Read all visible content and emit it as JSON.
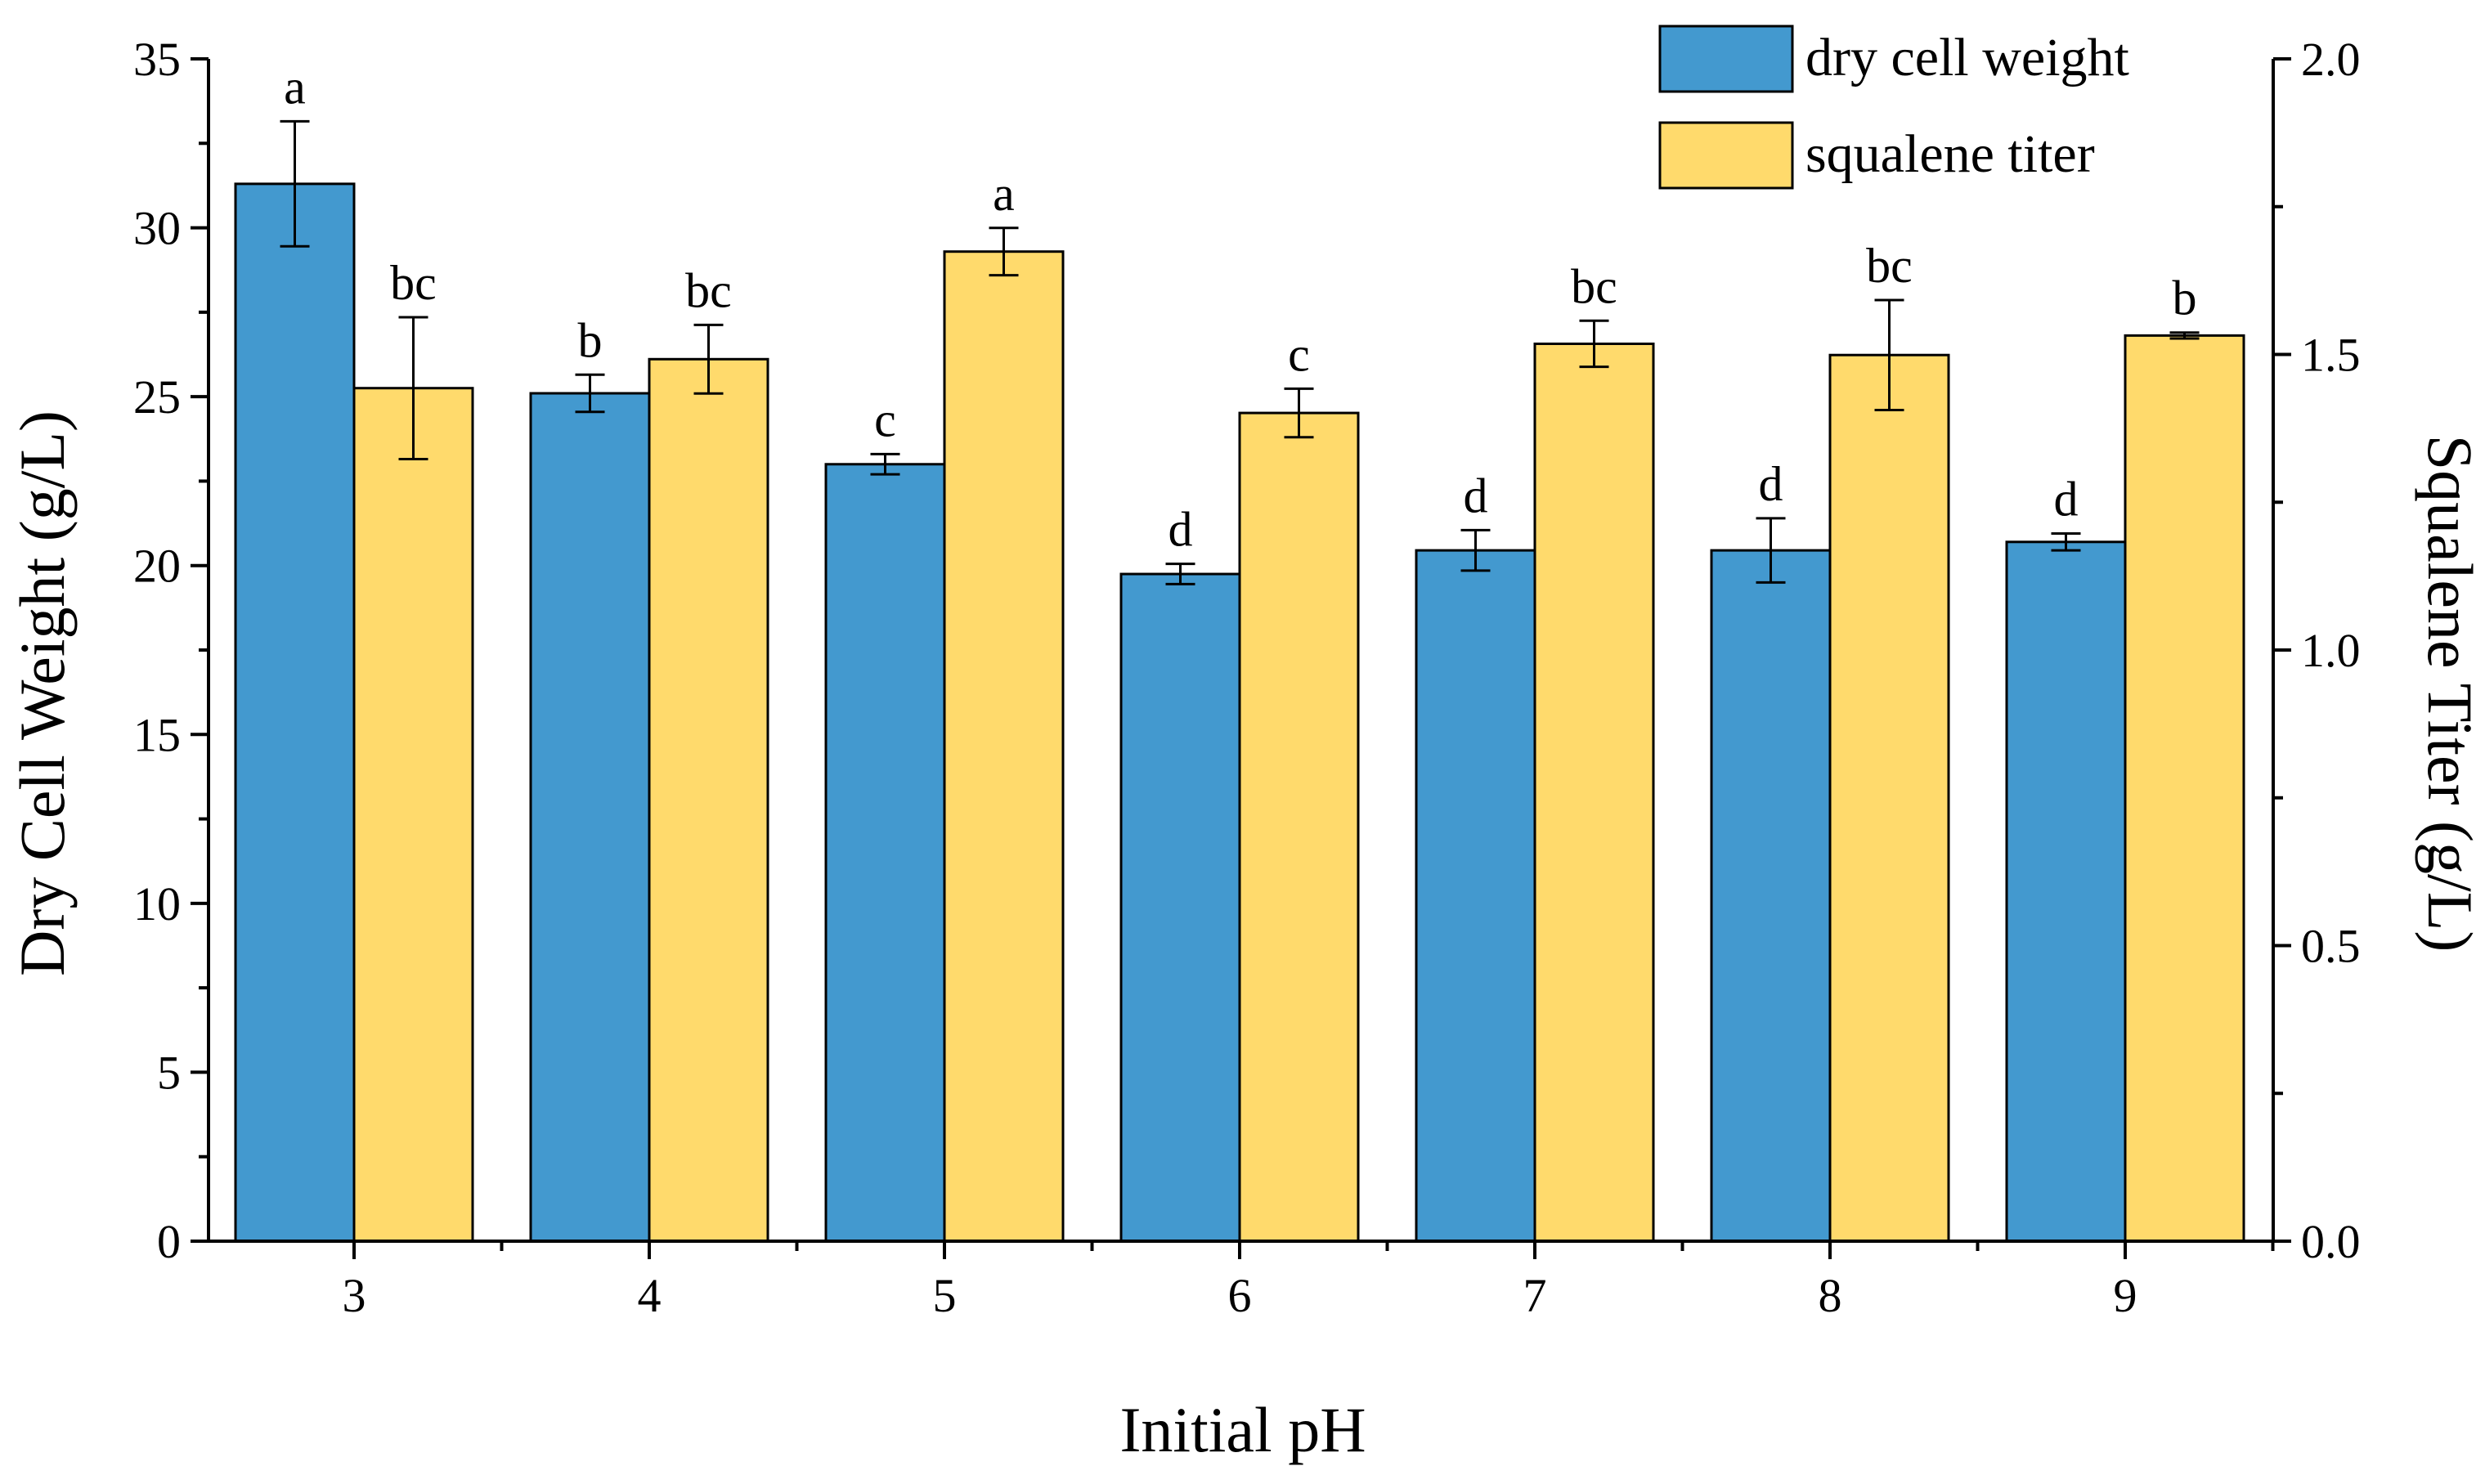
{
  "chart_data": {
    "type": "bar",
    "x_label": "Initial pH",
    "y_left_label": "Dry Cell Weight (g/L)",
    "y_right_label": "Squalene Titer (g/L)",
    "y_left_range": [
      0,
      35
    ],
    "y_right_range": [
      0.0,
      2.0
    ],
    "y_left_ticks": [
      "0",
      "5",
      "10",
      "15",
      "20",
      "25",
      "30",
      "35"
    ],
    "y_right_ticks": [
      "0.0",
      "0.5",
      "1.0",
      "1.5",
      "2.0"
    ],
    "categories": [
      "3",
      "4",
      "5",
      "6",
      "7",
      "8",
      "9"
    ],
    "legend_position": "top-right",
    "series": [
      {
        "name": "dry cell weight",
        "axis": "left",
        "color": "#4399CF",
        "values": [
          31.3,
          25.1,
          23.0,
          19.75,
          20.45,
          20.45,
          20.7
        ],
        "errors": [
          1.85,
          0.55,
          0.3,
          0.3,
          0.6,
          0.95,
          0.25
        ],
        "labels": [
          "a",
          "b",
          "c",
          "d",
          "d",
          "d",
          "d"
        ]
      },
      {
        "name": "squalene titer",
        "axis": "right",
        "color": "#FFDA6C",
        "values": [
          1.443,
          1.492,
          1.674,
          1.401,
          1.518,
          1.499,
          1.532
        ],
        "errors": [
          0.12,
          0.058,
          0.04,
          0.041,
          0.039,
          0.093,
          0.005
        ],
        "labels": [
          "bc",
          "bc",
          "a",
          "c",
          "bc",
          "bc",
          "b"
        ]
      }
    ]
  }
}
